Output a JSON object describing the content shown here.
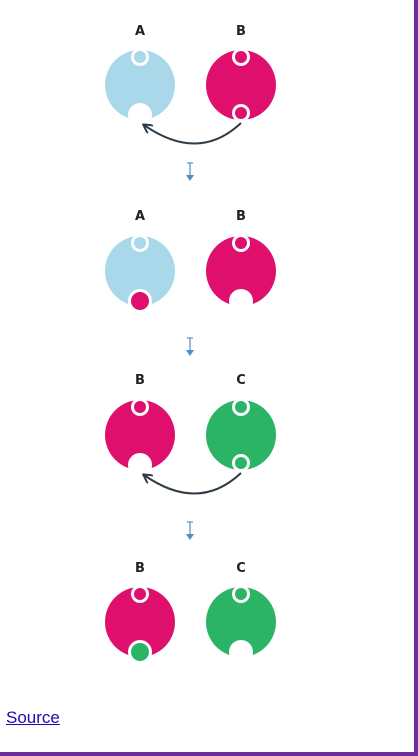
{
  "colors": {
    "A": "#a8d8ea",
    "B": "#df0f6d",
    "C": "#2bb466",
    "arrow": "#2f3b45",
    "step_arrow": "#4f8fc4",
    "frame": "#6a2f9a",
    "link": "#1a0dab"
  },
  "steps": [
    {
      "left": {
        "label": "A",
        "color_key": "A",
        "bottom_notch": "empty"
      },
      "right": {
        "label": "B",
        "color_key": "B",
        "bottom_notch": "ring"
      },
      "transfer_arrow": true
    },
    {
      "left": {
        "label": "A",
        "color_key": "A",
        "bottom_notch": "filled-B"
      },
      "right": {
        "label": "B",
        "color_key": "B",
        "bottom_notch": "empty"
      },
      "transfer_arrow": false
    },
    {
      "left": {
        "label": "B",
        "color_key": "B",
        "bottom_notch": "empty"
      },
      "right": {
        "label": "C",
        "color_key": "C",
        "bottom_notch": "ring"
      },
      "transfer_arrow": true
    },
    {
      "left": {
        "label": "B",
        "color_key": "B",
        "bottom_notch": "filled-C"
      },
      "right": {
        "label": "C",
        "color_key": "C",
        "bottom_notch": "empty"
      },
      "transfer_arrow": false
    }
  ],
  "footer": {
    "source_link": "Source"
  }
}
